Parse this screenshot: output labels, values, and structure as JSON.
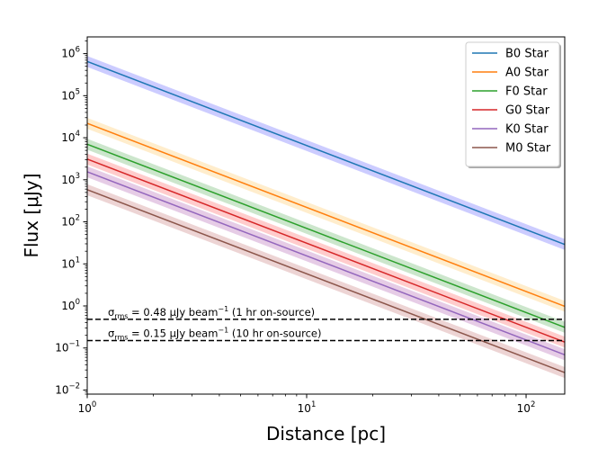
{
  "chart_data": {
    "type": "line",
    "x_scale": "log",
    "y_scale": "log",
    "xlim": [
      1,
      150
    ],
    "ylim": [
      0.008,
      2500000
    ],
    "xlabel": "Distance [pc]",
    "ylabel": "Flux [μJy]",
    "x_ticks": [
      {
        "value": 1,
        "base": "10",
        "exp": "0"
      },
      {
        "value": 10,
        "base": "10",
        "exp": "1"
      },
      {
        "value": 100,
        "base": "10",
        "exp": "2"
      }
    ],
    "y_ticks": [
      {
        "value": 0.01,
        "base": "10",
        "exp": "−2"
      },
      {
        "value": 0.1,
        "base": "10",
        "exp": "−1"
      },
      {
        "value": 1,
        "base": "10",
        "exp": "0"
      },
      {
        "value": 10,
        "base": "10",
        "exp": "1"
      },
      {
        "value": 100,
        "base": "10",
        "exp": "2"
      },
      {
        "value": 1000,
        "base": "10",
        "exp": "3"
      },
      {
        "value": 10000,
        "base": "10",
        "exp": "4"
      },
      {
        "value": 100000,
        "base": "10",
        "exp": "5"
      },
      {
        "value": 1000000,
        "base": "10",
        "exp": "6"
      }
    ],
    "series": [
      {
        "name": "B0 Star",
        "color": "#1f77b4",
        "band_color": "#0000ff",
        "x": [
          1,
          150
        ],
        "values": [
          650000,
          29
        ],
        "band_factor": 1.35
      },
      {
        "name": "A0 Star",
        "color": "#ff7f0e",
        "band_color": "#ffa500",
        "x": [
          1,
          150
        ],
        "values": [
          22000,
          0.98
        ],
        "band_factor": 1.35
      },
      {
        "name": "F0 Star",
        "color": "#2ca02c",
        "band_color": "#008000",
        "x": [
          1,
          150
        ],
        "values": [
          7000,
          0.31
        ],
        "band_factor": 1.35
      },
      {
        "name": "G0 Star",
        "color": "#d62728",
        "band_color": "#ff0000",
        "x": [
          1,
          150
        ],
        "values": [
          3100,
          0.138
        ],
        "band_factor": 1.35
      },
      {
        "name": "K0 Star",
        "color": "#9467bd",
        "band_color": "#800080",
        "x": [
          1,
          150
        ],
        "values": [
          1550,
          0.069
        ],
        "band_factor": 1.35
      },
      {
        "name": "M0 Star",
        "color": "#8c564b",
        "band_color": "#a52a2a",
        "x": [
          1,
          150
        ],
        "values": [
          580,
          0.026
        ],
        "band_factor": 1.35
      }
    ],
    "reference_lines": [
      {
        "y": 0.48,
        "style": "dashed",
        "color": "#000000",
        "label_main": "σ",
        "label_sub": "rms",
        "label_value": " = 0.48 μJy beam",
        "label_sup": "−1",
        "label_note": " (1 hr on-source)"
      },
      {
        "y": 0.15,
        "style": "dashed",
        "color": "#000000",
        "label_main": "σ",
        "label_sub": "rms",
        "label_value": " = 0.15 μJy beam",
        "label_sup": "−1",
        "label_note": " (10 hr on-source)"
      }
    ],
    "legend": {
      "position": "top-right"
    },
    "grid": false
  }
}
